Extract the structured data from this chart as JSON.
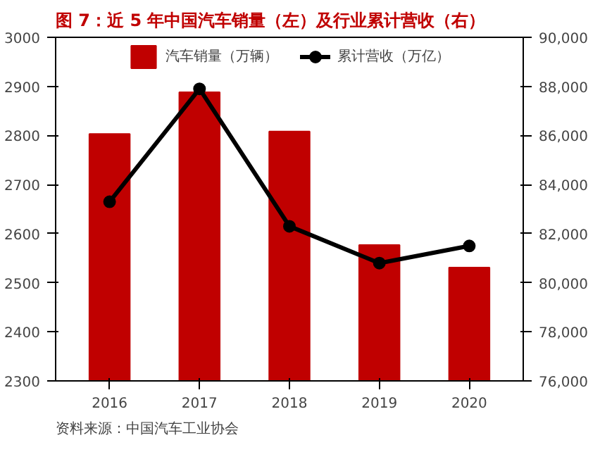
{
  "chart_data": {
    "type": "bar",
    "title": "图 7：近 5 年中国汽车销量（左）及行业累计营收（右）",
    "categories": [
      "2016",
      "2017",
      "2018",
      "2019",
      "2020"
    ],
    "series": [
      {
        "name": "汽车销量（万辆）",
        "color": "#c00000",
        "values": [
          2803,
          2888,
          2808,
          2577,
          2531
        ]
      },
      {
        "name": "累计营收（万亿）",
        "type": "line",
        "axis": "y2",
        "color": "#000000",
        "marker": "circle",
        "values": [
          83300,
          87900,
          82300,
          80800,
          81500
        ]
      }
    ],
    "ylim": [
      2300,
      3000
    ],
    "yticks": [
      2300,
      2400,
      2500,
      2600,
      2700,
      2800,
      2900,
      3000
    ],
    "y2lim": [
      76000,
      90000
    ],
    "y2ticks": [
      {
        "value": 76000,
        "label": "76,000"
      },
      {
        "value": 78000,
        "label": "78,000"
      },
      {
        "value": 80000,
        "label": "80,000"
      },
      {
        "value": 82000,
        "label": "82,000"
      },
      {
        "value": 84000,
        "label": "84,000"
      },
      {
        "value": 86000,
        "label": "86,000"
      },
      {
        "value": 88000,
        "label": "88,000"
      },
      {
        "value": 90000,
        "label": "90,000"
      }
    ],
    "legend": "top",
    "grid": false,
    "annotations": [
      "资料来源：中国汽车工业协会"
    ]
  }
}
